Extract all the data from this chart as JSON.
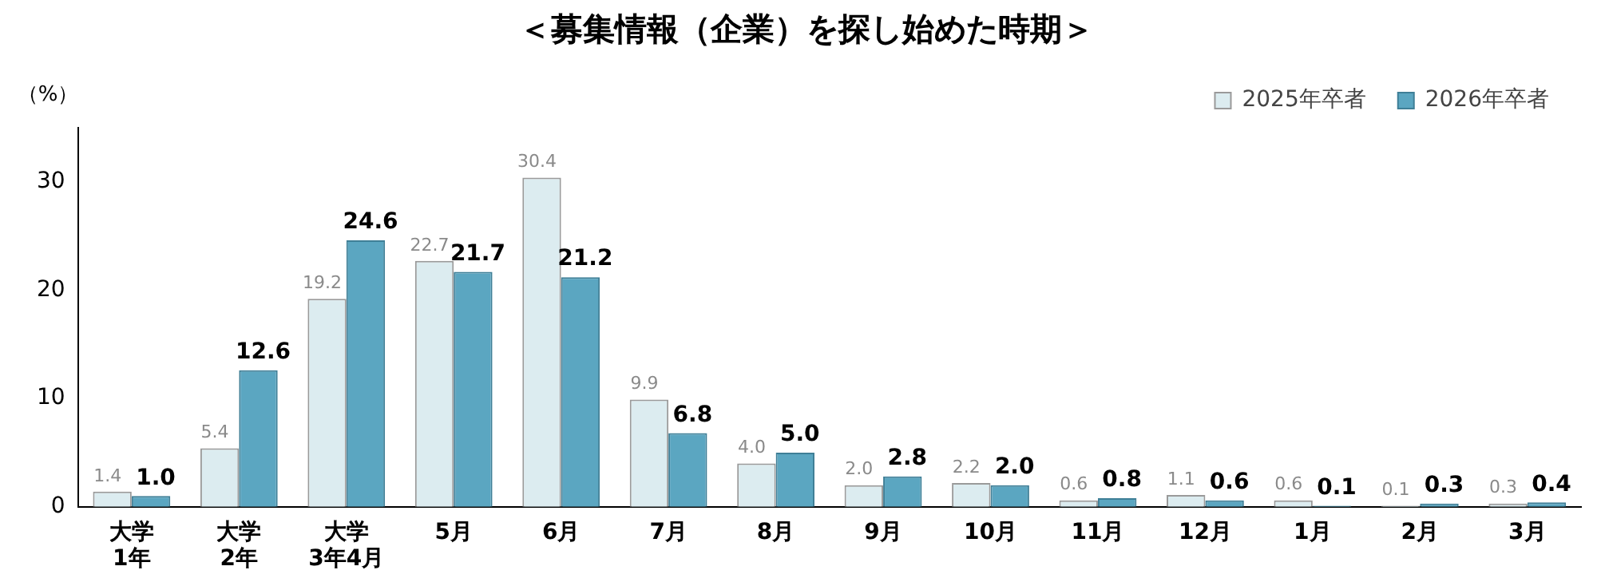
{
  "chart_data": {
    "type": "bar",
    "title": "＜募集情報（企業）を探し始めた時期＞",
    "ylabel": "（%）",
    "categories": [
      "大学\n1年",
      "大学\n2年",
      "大学\n3年4月",
      "5月",
      "6月",
      "7月",
      "8月",
      "9月",
      "10月",
      "11月",
      "12月",
      "1月",
      "2月",
      "3月"
    ],
    "series": [
      {
        "name": "2025年卒者",
        "color": "#dcecf0",
        "values": [
          1.4,
          5.4,
          19.2,
          22.7,
          30.4,
          9.9,
          4.0,
          2.0,
          2.2,
          0.6,
          1.1,
          0.6,
          0.1,
          0.3
        ],
        "value_labels": [
          "1.4",
          "5.4",
          "19.2",
          "22.7",
          "30.4",
          "9.9",
          "4.0",
          "2.0",
          "2.2",
          "0.6",
          "1.1",
          "0.6",
          "0.1",
          "0.3"
        ]
      },
      {
        "name": "2026年卒者",
        "color": "#5ba6c1",
        "values": [
          1.0,
          12.6,
          24.6,
          21.7,
          21.2,
          6.8,
          5.0,
          2.8,
          2.0,
          0.8,
          0.6,
          0.1,
          0.3,
          0.4
        ],
        "value_labels": [
          "1.0",
          "12.6",
          "24.6",
          "21.7",
          "21.2",
          "6.8",
          "5.0",
          "2.8",
          "2.0",
          "0.8",
          "0.6",
          "0.1",
          "0.3",
          "0.4"
        ]
      }
    ],
    "ylim": [
      0,
      35
    ],
    "yticks": [
      0,
      10,
      20,
      30
    ],
    "grid": false,
    "legend": "top right"
  }
}
